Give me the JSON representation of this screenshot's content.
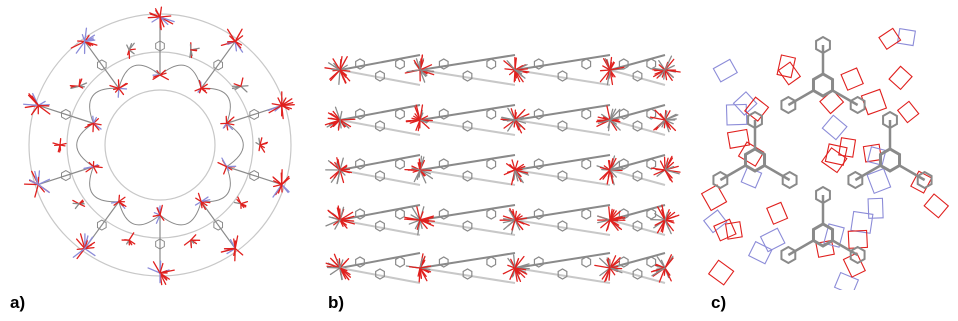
{
  "figure": {
    "panels": [
      {
        "label": "a)",
        "description_icon": "molecular-framework-cage"
      },
      {
        "label": "b)",
        "description_icon": "molecular-framework-layers"
      },
      {
        "label": "c)",
        "description_icon": "molecular-framework-network"
      }
    ]
  },
  "colors": {
    "oxygen": "#e0201e",
    "carbon": "#8a8a8a",
    "nitrogen": "#8c8cd8",
    "bond_light": "#c8c8c8",
    "background": "#ffffff"
  }
}
